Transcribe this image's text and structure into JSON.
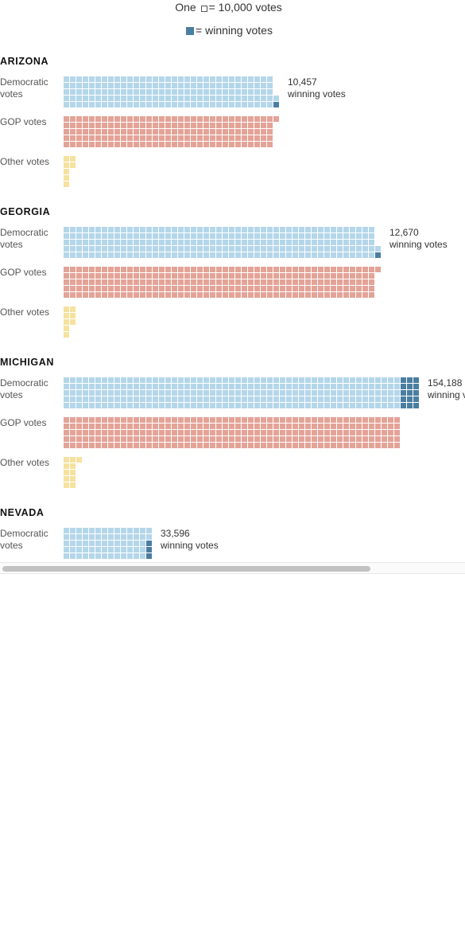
{
  "legend": {
    "unit_prefix": "One",
    "unit_text": "= 10,000 votes",
    "winning_text": "= winning votes"
  },
  "colors": {
    "democratic": "#b4d6ea",
    "gop": "#e3a397",
    "other": "#f6e29e",
    "winning": "#4a7ea1"
  },
  "row_labels": {
    "democratic": "Democratic\nvotes",
    "gop": "GOP votes",
    "other": "Other votes"
  },
  "chart_data": {
    "type": "waffle",
    "unit": "10,000 votes per square",
    "states": [
      {
        "name": "ARIZONA",
        "democratic_squares": 167,
        "gop_squares": 166,
        "other_squares": 7,
        "winning_squares": 1,
        "winning_label": "10,457",
        "winning_text": "winning votes"
      },
      {
        "name": "GEORGIA",
        "democratic_squares": 247,
        "gop_squares": 246,
        "other_squares": 8,
        "winning_squares": 1,
        "winning_label": "12,670",
        "winning_text": "winning votes"
      },
      {
        "name": "MICHIGAN",
        "democratic_squares": 280,
        "gop_squares": 265,
        "other_squares": 11,
        "winning_squares": 15,
        "winning_label": "154,188",
        "winning_text": "winning votes"
      },
      {
        "name": "NEVADA",
        "democratic_squares": 70,
        "winning_squares": 3,
        "winning_label": "33,596",
        "winning_text": "winning votes"
      }
    ]
  }
}
